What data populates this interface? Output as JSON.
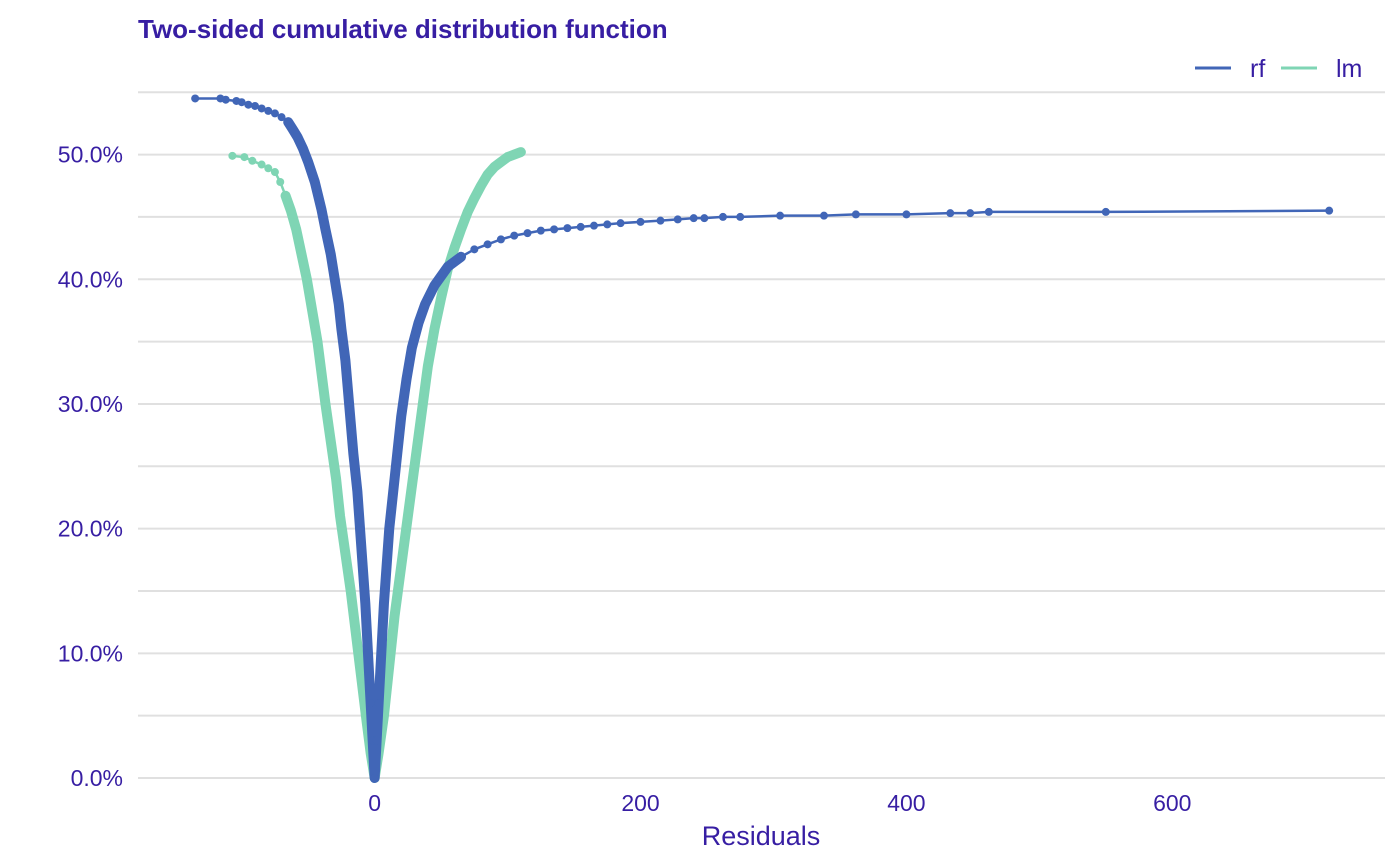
{
  "colors": {
    "text": "#371ea3",
    "grid": "#e0e0e0",
    "rf": "#4166b7",
    "lm": "#7fd5b4",
    "background": "#ffffff"
  },
  "chart_data": {
    "type": "line",
    "title": "Two-sided cumulative distribution function",
    "xlabel": "Residuals",
    "ylabel": "",
    "xlim": [
      -178,
      760
    ],
    "ylim": [
      0,
      0.555
    ],
    "x_ticks": [
      0,
      200,
      400,
      600
    ],
    "x_tick_labels": [
      "0",
      "200",
      "400",
      "600"
    ],
    "y_ticks": [
      0,
      0.1,
      0.2,
      0.3,
      0.4,
      0.5
    ],
    "y_tick_labels": [
      "0.0%",
      "10.0%",
      "20.0%",
      "30.0%",
      "40.0%",
      "50.0%"
    ],
    "grid": true,
    "legend_position": "top-right",
    "markers": true,
    "series": [
      {
        "name": "rf",
        "color": "#4166b7",
        "points": [
          [
            -135,
            0.545
          ],
          [
            -116,
            0.545
          ],
          [
            -112,
            0.544
          ],
          [
            -104,
            0.543
          ],
          [
            -100,
            0.542
          ],
          [
            -95,
            0.54
          ],
          [
            -90,
            0.539
          ],
          [
            -85,
            0.537
          ],
          [
            -80,
            0.535
          ],
          [
            -75,
            0.533
          ],
          [
            -70,
            0.53
          ],
          [
            -65,
            0.526
          ],
          [
            -62,
            0.521
          ],
          [
            -58,
            0.514
          ],
          [
            -54,
            0.505
          ],
          [
            -50,
            0.494
          ],
          [
            -45,
            0.478
          ],
          [
            -40,
            0.456
          ],
          [
            -37,
            0.44
          ],
          [
            -33,
            0.42
          ],
          [
            -30,
            0.4
          ],
          [
            -27,
            0.38
          ],
          [
            -25,
            0.36
          ],
          [
            -22,
            0.335
          ],
          [
            -20,
            0.31
          ],
          [
            -18,
            0.285
          ],
          [
            -16,
            0.26
          ],
          [
            -13,
            0.23
          ],
          [
            -11,
            0.2
          ],
          [
            -9,
            0.17
          ],
          [
            -7,
            0.14
          ],
          [
            -5,
            0.1
          ],
          [
            -3,
            0.06
          ],
          [
            -1.5,
            0.03
          ],
          [
            0,
            0.0
          ],
          [
            1.5,
            0.03
          ],
          [
            3,
            0.06
          ],
          [
            5,
            0.1
          ],
          [
            7,
            0.14
          ],
          [
            9,
            0.17
          ],
          [
            11,
            0.2
          ],
          [
            14,
            0.23
          ],
          [
            17,
            0.26
          ],
          [
            20,
            0.29
          ],
          [
            24,
            0.32
          ],
          [
            28,
            0.345
          ],
          [
            33,
            0.365
          ],
          [
            38,
            0.38
          ],
          [
            45,
            0.395
          ],
          [
            55,
            0.41
          ],
          [
            65,
            0.418
          ],
          [
            75,
            0.424
          ],
          [
            85,
            0.428
          ],
          [
            95,
            0.432
          ],
          [
            105,
            0.435
          ],
          [
            115,
            0.437
          ],
          [
            125,
            0.439
          ],
          [
            135,
            0.44
          ],
          [
            145,
            0.441
          ],
          [
            155,
            0.442
          ],
          [
            165,
            0.443
          ],
          [
            175,
            0.444
          ],
          [
            185,
            0.445
          ],
          [
            200,
            0.446
          ],
          [
            215,
            0.447
          ],
          [
            228,
            0.448
          ],
          [
            240,
            0.449
          ],
          [
            248,
            0.449
          ],
          [
            262,
            0.45
          ],
          [
            275,
            0.45
          ],
          [
            305,
            0.451
          ],
          [
            338,
            0.451
          ],
          [
            362,
            0.452
          ],
          [
            400,
            0.452
          ],
          [
            433,
            0.453
          ],
          [
            448,
            0.453
          ],
          [
            462,
            0.454
          ],
          [
            550,
            0.454
          ],
          [
            718,
            0.455
          ]
        ]
      },
      {
        "name": "lm",
        "color": "#7fd5b4",
        "points": [
          [
            -107,
            0.499
          ],
          [
            -98,
            0.498
          ],
          [
            -92,
            0.495
          ],
          [
            -85,
            0.492
          ],
          [
            -80,
            0.489
          ],
          [
            -75,
            0.486
          ],
          [
            -71,
            0.478
          ],
          [
            -67,
            0.467
          ],
          [
            -63,
            0.455
          ],
          [
            -59,
            0.44
          ],
          [
            -55,
            0.42
          ],
          [
            -51,
            0.4
          ],
          [
            -47,
            0.375
          ],
          [
            -43,
            0.35
          ],
          [
            -40,
            0.325
          ],
          [
            -37,
            0.3
          ],
          [
            -33,
            0.27
          ],
          [
            -29,
            0.24
          ],
          [
            -26,
            0.21
          ],
          [
            -22,
            0.18
          ],
          [
            -18,
            0.15
          ],
          [
            -14,
            0.115
          ],
          [
            -10,
            0.08
          ],
          [
            -6,
            0.045
          ],
          [
            -3,
            0.02
          ],
          [
            0,
            0.0
          ],
          [
            3,
            0.02
          ],
          [
            7,
            0.05
          ],
          [
            11,
            0.09
          ],
          [
            15,
            0.13
          ],
          [
            20,
            0.17
          ],
          [
            25,
            0.21
          ],
          [
            30,
            0.25
          ],
          [
            35,
            0.29
          ],
          [
            40,
            0.33
          ],
          [
            45,
            0.36
          ],
          [
            50,
            0.385
          ],
          [
            55,
            0.408
          ],
          [
            60,
            0.425
          ],
          [
            65,
            0.44
          ],
          [
            70,
            0.454
          ],
          [
            75,
            0.465
          ],
          [
            80,
            0.475
          ],
          [
            85,
            0.484
          ],
          [
            90,
            0.49
          ],
          [
            95,
            0.494
          ],
          [
            100,
            0.498
          ],
          [
            105,
            0.5
          ],
          [
            110,
            0.502
          ]
        ]
      }
    ]
  }
}
